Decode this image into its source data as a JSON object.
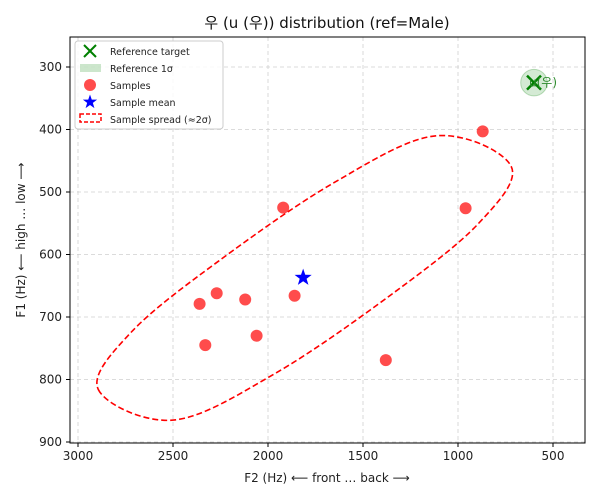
{
  "chart_data": {
    "type": "scatter",
    "title": "우 (u (우)) distribution (ref=Male)",
    "xlabel": "F2 (Hz) ⟵ front … back ⟶",
    "ylabel": "F1 (Hz) ⟵ high … low ⟶",
    "x_reversed": true,
    "y_reversed": true,
    "xlim": [
      3000,
      350
    ],
    "ylim": [
      250,
      900
    ],
    "x_ticks": [
      3000,
      2500,
      2000,
      1500,
      1000,
      500
    ],
    "y_ticks": [
      300,
      400,
      500,
      600,
      700,
      800,
      900
    ],
    "grid": true,
    "legend_position": "top-left",
    "series": [
      {
        "name": "Reference target",
        "marker": "x",
        "color": "#008000",
        "points": [
          {
            "x": 600,
            "y": 325
          }
        ],
        "annotation": "u(우)"
      },
      {
        "name": "Reference 1σ",
        "marker": "circle-area",
        "color": "#90c890",
        "center": {
          "x": 600,
          "y": 325
        },
        "radius_hz": 70
      },
      {
        "name": "Samples",
        "marker": "circle",
        "color": "#ff0000",
        "points": [
          {
            "x": 870,
            "y": 403
          },
          {
            "x": 960,
            "y": 526
          },
          {
            "x": 1920,
            "y": 525
          },
          {
            "x": 2360,
            "y": 679
          },
          {
            "x": 2270,
            "y": 662
          },
          {
            "x": 2120,
            "y": 672
          },
          {
            "x": 1860,
            "y": 666
          },
          {
            "x": 2330,
            "y": 745
          },
          {
            "x": 2060,
            "y": 730
          },
          {
            "x": 1380,
            "y": 769
          }
        ]
      },
      {
        "name": "Sample mean",
        "marker": "star",
        "color": "#0000ff",
        "points": [
          {
            "x": 1815,
            "y": 637
          }
        ]
      },
      {
        "name": "Sample spread (≈2σ)",
        "marker": "dashed-ellipse",
        "color": "#ff0000",
        "outline": [
          {
            "x": 2893,
            "y": 816
          },
          {
            "x": 2498,
            "y": 865
          },
          {
            "x": 1961,
            "y": 790
          },
          {
            "x": 1355,
            "y": 665
          },
          {
            "x": 894,
            "y": 551
          },
          {
            "x": 720,
            "y": 459
          },
          {
            "x": 1115,
            "y": 410
          },
          {
            "x": 1652,
            "y": 485
          },
          {
            "x": 2258,
            "y": 610
          },
          {
            "x": 2719,
            "y": 724
          }
        ]
      }
    ]
  }
}
